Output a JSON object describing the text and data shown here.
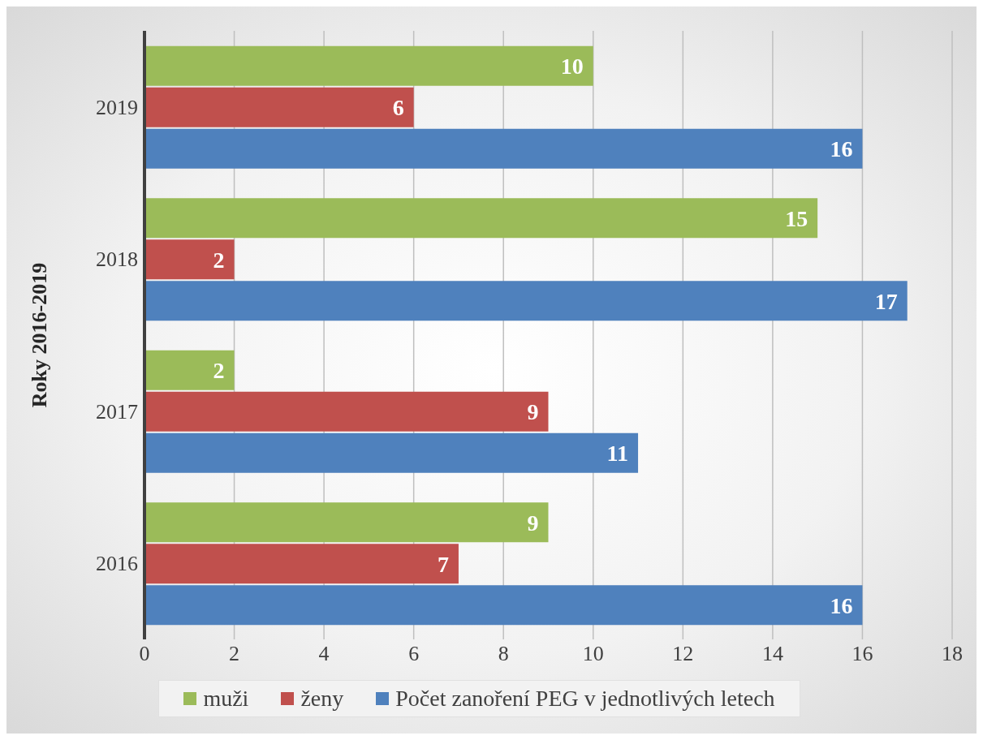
{
  "chart_data": {
    "type": "bar",
    "orientation": "horizontal",
    "ylabel": "Roky 2016-2019",
    "categories": [
      "2019",
      "2018",
      "2017",
      "2016"
    ],
    "series": [
      {
        "name": "muži",
        "color": "#9bbb59",
        "values": [
          10,
          15,
          2,
          9
        ]
      },
      {
        "name": "ženy",
        "color": "#c0504d",
        "values": [
          6,
          2,
          9,
          7
        ]
      },
      {
        "name": "Počet zanoření PEG v jednotlivých letech",
        "color": "#4f81bd",
        "values": [
          16,
          17,
          11,
          16
        ]
      }
    ],
    "xlim": [
      0,
      18
    ],
    "xticks": [
      0,
      2,
      4,
      6,
      8,
      10,
      12,
      14,
      16,
      18
    ],
    "grid": "x",
    "legend": "bottom",
    "data_labels": true
  }
}
